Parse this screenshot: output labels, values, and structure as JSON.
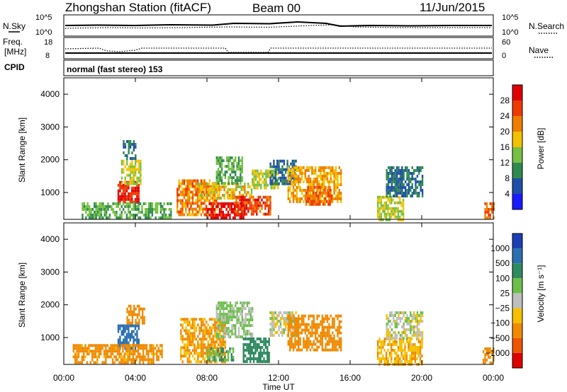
{
  "header": {
    "station_title": "Zhongshan Station (fitACF)",
    "beam": "Beam 00",
    "date": "11/Jun/2015"
  },
  "top_panels": {
    "nsky_label": "N.Sky",
    "nsky_ticks": [
      "10^5",
      "10^0"
    ],
    "nsearch_label": "N.Search",
    "nsearch_ticks": [
      "10^5",
      "10^0"
    ],
    "freq_label_1": "Freq.",
    "freq_label_2": "[MHz]",
    "freq_ticks": [
      "18",
      "8"
    ],
    "nave_label": "Nave",
    "nave_ticks": [
      "60",
      "0"
    ],
    "cpid_label": "CPID",
    "cpid_value": "normal (fast stereo) 153"
  },
  "x_axis": {
    "label": "Time UT",
    "ticks": [
      "00:00",
      "04:00",
      "08:00",
      "12:00",
      "16:00",
      "20:00",
      "00:00"
    ]
  },
  "y_axis": {
    "label": "Slant Range [km]",
    "ticks": [
      "1000",
      "2000",
      "3000",
      "4000"
    ]
  },
  "power_colorbar": {
    "label": "Power [dB]",
    "ticks": [
      "4",
      "8",
      "12",
      "16",
      "20",
      "24",
      "28"
    ],
    "colors": [
      "#1a1aff",
      "#1f4fa8",
      "#2f8a4f",
      "#76c043",
      "#f2c200",
      "#f07d00",
      "#ee3a00",
      "#e00000"
    ]
  },
  "velocity_colorbar": {
    "label": "Velocity [m s⁻¹]",
    "ticks": [
      "1000",
      "500",
      "100",
      "25",
      "−25",
      "−100",
      "−500",
      "−1000"
    ],
    "colors": [
      "#1a3fb5",
      "#2a6fb0",
      "#2f8a5f",
      "#6cc04a",
      "#bebebe",
      "#f5c000",
      "#f08a00",
      "#ee5500",
      "#e00000"
    ]
  },
  "chart_data": {
    "type": "heatmap",
    "x_unit": "hours UT",
    "y_unit": "km",
    "xlim": [
      0,
      24
    ],
    "ylim": [
      180,
      4500
    ],
    "power_regions": [
      {
        "t0": 3.0,
        "t1": 4.2,
        "r0": 700,
        "r1": 1350,
        "value": 26
      },
      {
        "t0": 3.2,
        "t1": 4.3,
        "r0": 1300,
        "r1": 2000,
        "value": 14
      },
      {
        "t0": 3.3,
        "t1": 4.0,
        "r0": 2000,
        "r1": 2600,
        "value": 6
      },
      {
        "t0": 1.0,
        "t1": 6.0,
        "r0": 200,
        "r1": 700,
        "value": 10
      },
      {
        "t0": 6.3,
        "t1": 8.5,
        "r0": 350,
        "r1": 1400,
        "value": 20
      },
      {
        "t0": 8.0,
        "t1": 10.0,
        "r0": 250,
        "r1": 700,
        "value": 28
      },
      {
        "t0": 7.5,
        "t1": 10.5,
        "r0": 800,
        "r1": 1300,
        "value": 16
      },
      {
        "t0": 8.5,
        "t1": 10.0,
        "r0": 1300,
        "r1": 2100,
        "value": 10
      },
      {
        "t0": 9.5,
        "t1": 11.5,
        "r0": 300,
        "r1": 900,
        "value": 24
      },
      {
        "t0": 10.5,
        "t1": 12.0,
        "r0": 1100,
        "r1": 1700,
        "value": 14
      },
      {
        "t0": 11.5,
        "t1": 13.0,
        "r0": 1300,
        "r1": 2000,
        "value": 6
      },
      {
        "t0": 12.5,
        "t1": 15.5,
        "r0": 700,
        "r1": 1800,
        "value": 18
      },
      {
        "t0": 13.5,
        "t1": 15.0,
        "r0": 600,
        "r1": 1200,
        "value": 22
      },
      {
        "t0": 17.5,
        "t1": 19.0,
        "r0": 200,
        "r1": 900,
        "value": 14
      },
      {
        "t0": 18.0,
        "t1": 20.0,
        "r0": 900,
        "r1": 1800,
        "value": 6
      },
      {
        "t0": 23.5,
        "t1": 24.0,
        "r0": 200,
        "r1": 700,
        "value": 22
      }
    ],
    "velocity_regions": [
      {
        "t0": 3.0,
        "t1": 4.2,
        "r0": 700,
        "r1": 1400,
        "value": 900
      },
      {
        "t0": 0.5,
        "t1": 5.5,
        "r0": 200,
        "r1": 800,
        "value": -150
      },
      {
        "t0": 3.5,
        "t1": 4.5,
        "r0": 1400,
        "r1": 2000,
        "value": -200
      },
      {
        "t0": 6.5,
        "t1": 9.0,
        "r0": 300,
        "r1": 1600,
        "value": -120
      },
      {
        "t0": 8.5,
        "t1": 10.5,
        "r0": 1000,
        "r1": 2100,
        "value": 40
      },
      {
        "t0": 8.0,
        "t1": 9.5,
        "r0": 300,
        "r1": 700,
        "value": 80
      },
      {
        "t0": 10.0,
        "t1": 11.5,
        "r0": 300,
        "r1": 1000,
        "value": 200
      },
      {
        "t0": 11.5,
        "t1": 13.0,
        "r0": 1100,
        "r1": 1800,
        "value": 0
      },
      {
        "t0": 12.5,
        "t1": 15.5,
        "r0": 600,
        "r1": 1700,
        "value": -300
      },
      {
        "t0": 17.5,
        "t1": 20.0,
        "r0": 200,
        "r1": 1000,
        "value": -80
      },
      {
        "t0": 18.0,
        "t1": 20.0,
        "r0": 1000,
        "r1": 1800,
        "value": 0
      },
      {
        "t0": 23.4,
        "t1": 24.0,
        "r0": 200,
        "r1": 700,
        "value": -200
      }
    ]
  }
}
